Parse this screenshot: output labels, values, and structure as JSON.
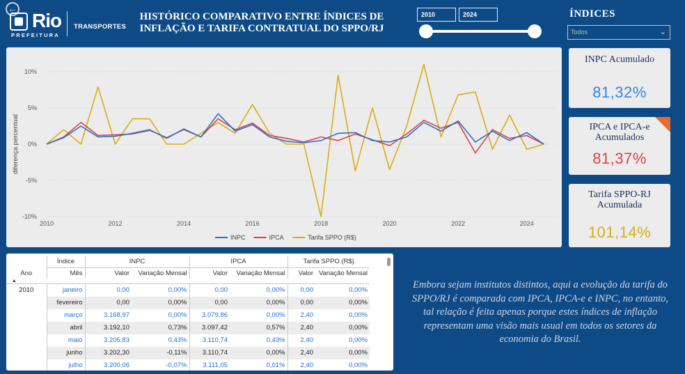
{
  "header": {
    "logo_text": "Rio",
    "logo_sub": "PREFEITURA",
    "department": "TRANSPORTES",
    "title_line1": "HISTÓRICO COMPARATIVO ENTRE ÍNDICES DE",
    "title_line2": "INFLAÇÃO E TARIFA CONTRATUAL DO SPPO/RJ"
  },
  "year_filter": {
    "start": "2010",
    "end": "2024",
    "range_fraction": [
      0,
      1
    ]
  },
  "indices_filter": {
    "title": "ÍNDICES",
    "selected": "Todos"
  },
  "kpis": [
    {
      "label": "INPC Acumulado",
      "value": "81,32%",
      "color": "#2f86e3"
    },
    {
      "label": "IPCA e IPCA-e Acumulados",
      "value": "81,37%",
      "color": "#d8434b"
    },
    {
      "label": "Tarifa SPPO-RJ Acumulada",
      "value": "101,14%",
      "color": "#d9ad12"
    }
  ],
  "chart_data": {
    "type": "line",
    "ylabel": "diferença percentual",
    "ylim": [
      -10,
      10
    ],
    "xlim": [
      2010,
      2024.9
    ],
    "y_ticks": [
      "10%",
      "5%",
      "0%",
      "-5%",
      "-10%"
    ],
    "x_ticks": [
      "2010",
      "2012",
      "2014",
      "2016",
      "2018",
      "2020",
      "2022",
      "2024"
    ],
    "grid": true,
    "legend": "bottom",
    "x": [
      2010.0,
      2010.5,
      2011.0,
      2011.5,
      2012.0,
      2012.5,
      2013.0,
      2013.5,
      2014.0,
      2014.5,
      2015.0,
      2015.5,
      2016.0,
      2016.5,
      2017.0,
      2017.5,
      2018.0,
      2018.5,
      2019.0,
      2019.5,
      2020.0,
      2020.5,
      2021.0,
      2021.5,
      2022.0,
      2022.5,
      2023.0,
      2023.5,
      2024.0,
      2024.5
    ],
    "series": [
      {
        "name": "INPC",
        "color": "#2a6fc9",
        "values": [
          0.0,
          0.9,
          2.5,
          1.0,
          1.1,
          1.5,
          2.0,
          0.8,
          2.1,
          1.0,
          4.2,
          1.8,
          2.7,
          1.0,
          0.4,
          0.2,
          0.5,
          1.5,
          1.6,
          0.5,
          0.3,
          1.0,
          3.0,
          1.8,
          3.2,
          0.3,
          1.8,
          0.5,
          1.6,
          0.0
        ]
      },
      {
        "name": "IPCA",
        "color": "#d8434b",
        "values": [
          0.0,
          1.0,
          3.0,
          1.2,
          1.3,
          1.4,
          1.9,
          0.9,
          2.0,
          1.0,
          3.5,
          2.0,
          2.9,
          1.2,
          0.8,
          0.3,
          1.0,
          0.5,
          1.4,
          0.6,
          -0.2,
          1.4,
          3.3,
          2.2,
          3.0,
          -1.2,
          2.0,
          0.8,
          1.2,
          0.0
        ]
      },
      {
        "name": "Tarifa SPPO (R$)",
        "color": "#d9ad12",
        "values": [
          0.0,
          2.0,
          0.0,
          7.9,
          0.0,
          3.5,
          3.5,
          0.0,
          0.0,
          1.5,
          3.0,
          1.5,
          5.5,
          1.5,
          0.0,
          0.0,
          -10.0,
          9.5,
          -3.7,
          5.0,
          -3.5,
          2.5,
          11.0,
          1.0,
          6.8,
          7.2,
          -0.7,
          4.0,
          -0.7,
          0.0
        ]
      }
    ]
  },
  "table": {
    "group_header_label": "Índice",
    "groups": [
      "INPC",
      "IPCA",
      "Tarifa SPPO (R$)"
    ],
    "col_ano": "Ano",
    "col_mes": "Mês",
    "col_valor": "Valor",
    "col_var": "Variação Mensal",
    "year": "2010",
    "rows": [
      {
        "mes": "janeiro",
        "inpc_v": "0,00",
        "inpc_m": "0,00%",
        "ipca_v": "0,00",
        "ipca_m": "0,00%",
        "tar_v": "0,00",
        "tar_m": "0,00%"
      },
      {
        "mes": "fevereiro",
        "inpc_v": "0,00",
        "inpc_m": "0,00%",
        "ipca_v": "0,00",
        "ipca_m": "0,00%",
        "tar_v": "0,00",
        "tar_m": "0,00%"
      },
      {
        "mes": "março",
        "inpc_v": "3.168,97",
        "inpc_m": "0,00%",
        "ipca_v": "3.079,86",
        "ipca_m": "0,00%",
        "tar_v": "2,40",
        "tar_m": "0,00%"
      },
      {
        "mes": "abril",
        "inpc_v": "3.192,10",
        "inpc_m": "0,73%",
        "ipca_v": "3.097,42",
        "ipca_m": "0,57%",
        "tar_v": "2,40",
        "tar_m": "0,00%"
      },
      {
        "mes": "maio",
        "inpc_v": "3.205,83",
        "inpc_m": "0,43%",
        "ipca_v": "3.110,74",
        "ipca_m": "0,43%",
        "tar_v": "2,40",
        "tar_m": "0,00%"
      },
      {
        "mes": "junho",
        "inpc_v": "3.202,30",
        "inpc_m": "-0,11%",
        "ipca_v": "3.110,74",
        "ipca_m": "0,00%",
        "tar_v": "2,40",
        "tar_m": "0,00%"
      },
      {
        "mes": "julho",
        "inpc_v": "3.200,06",
        "inpc_m": "-0,07%",
        "ipca_v": "3.111,05",
        "ipca_m": "0,01%",
        "tar_v": "2,40",
        "tar_m": "0,00%"
      }
    ]
  },
  "note": "Embora sejam institutos distintos, aqui a evolução da tarifa do SPPO/RJ é comparada com IPCA, IPCA-e e INPC, no entanto, tal relação é feita apenas porque estes índices de inflação representam uma visão mais usual em todos os setores da economia do Brasil."
}
